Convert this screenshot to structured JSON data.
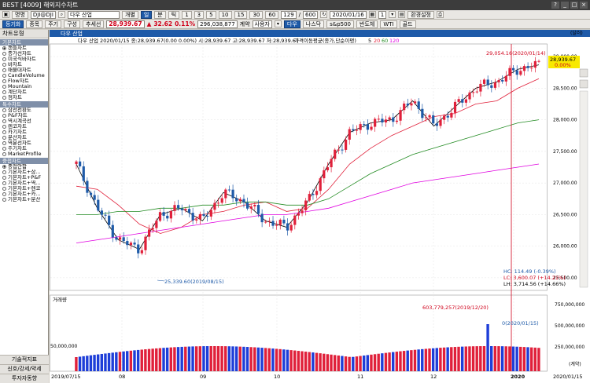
{
  "window": {
    "title": "BEST [4009] 해외지수차트",
    "controls": [
      "?",
      "_",
      "□",
      "×"
    ]
  },
  "toolbar1": {
    "menu": "명명",
    "symbol_code": "DJI@DJI",
    "symbol_name": "다우 산업",
    "period_buttons": [
      "개별",
      "일",
      "분",
      "틱"
    ],
    "scale_buttons": [
      "1",
      "3",
      "5",
      "10",
      "15",
      "30",
      "60"
    ],
    "count": "129",
    "total": "600",
    "date": "2020/01/16",
    "step": "1",
    "settings_label": "환경설정"
  },
  "toolbar2": {
    "tab_active": "등기화",
    "tab_items": [
      "종목",
      "주기",
      "구성",
      "추세선"
    ],
    "price": "28,939.67",
    "change_arrow": "▲",
    "change": "32.62",
    "change_pct": "0.11%",
    "volume": "296,038,877",
    "volume_unit": "계약",
    "user_select": "사용자",
    "index_buttons": [
      "다우",
      "나스닥",
      "s&p500",
      "반도체",
      "WTI",
      "골드"
    ]
  },
  "sidebar": {
    "tab_label": "차트유형",
    "groups": [
      {
        "title": "기본차트",
        "items": [
          {
            "label": "캔들차트",
            "selected": true
          },
          {
            "label": "종가선차트",
            "selected": false
          },
          {
            "label": "미국식바차트",
            "selected": false
          },
          {
            "label": "바차트",
            "selected": false
          },
          {
            "label": "매물대차트",
            "selected": false
          },
          {
            "label": "CandleVolume",
            "selected": false
          },
          {
            "label": "Flow차트",
            "selected": false
          },
          {
            "label": "Mountain",
            "selected": false
          },
          {
            "label": "계단차트",
            "selected": false
          },
          {
            "label": "점차트",
            "selected": false
          }
        ]
      },
      {
        "title": "특수차트",
        "items": [
          {
            "label": "삼선전환도",
            "selected": false
          },
          {
            "label": "P&F차트",
            "selected": false
          },
          {
            "label": "역시계곡선",
            "selected": false
          },
          {
            "label": "렌코차트",
            "selected": false
          },
          {
            "label": "카기차트",
            "selected": false
          },
          {
            "label": "분산차트",
            "selected": false
          },
          {
            "label": "역분선차트",
            "selected": false
          },
          {
            "label": "주기차트",
            "selected": false
          },
          {
            "label": "MarketProfile",
            "selected": false
          }
        ]
      },
      {
        "title": "중첩차트",
        "items": [
          {
            "label": "중첩안함",
            "selected": true
          },
          {
            "label": "기본차트+삼...",
            "selected": false
          },
          {
            "label": "기본차트+P&F",
            "selected": false
          },
          {
            "label": "기본차트+역...",
            "selected": false
          },
          {
            "label": "기본차트+렌코",
            "selected": false
          },
          {
            "label": "기본차트+카...",
            "selected": false
          },
          {
            "label": "기본차트+분산",
            "selected": false
          }
        ]
      }
    ],
    "bottom_buttons": [
      "기술적지표",
      "신호/강세/약세",
      "투자자동향"
    ]
  },
  "chart": {
    "panel_title": "다우 산업",
    "info_line": "다우 산업 2020/01/15 종:28,939.67(0.00 0.00%) 시:28,939.67 고:28,939.67 저:28,939.67",
    "ma_legend_label": "가격이동평균(종가,단순이평)",
    "ma_periods": [
      "5",
      "20",
      "60",
      "120"
    ],
    "ma_colors": [
      "#000000",
      "#e0203a",
      "#228b22",
      "#e000e0"
    ],
    "current_price_label": "28,939.67",
    "current_pct_label": "0.00%",
    "high_annotation": "29,054.16(2020/01/14)",
    "low_annotation": "25,339.60(2019/08/15)",
    "stats": [
      {
        "label": "HC: 114.49 (-0.39%)",
        "color": "#1e5aa8"
      },
      {
        "label": "LC: 3,600.07 (+14.21%)",
        "color": "#d0021b"
      },
      {
        "label": "LH: 3,714.56 (+14.66%)",
        "color": "#000000"
      }
    ],
    "y_unit": "(달러)",
    "volume_panel": {
      "title": "거래량",
      "max_annotation": "603,779,257(2019/12/20)",
      "last_annotation": "0(2020/01/15)",
      "y_ticks": [
        "750,000,000",
        "500,000,000",
        "250,000,000"
      ],
      "left_tick": "50,000,000",
      "y_unit": "(계약)"
    },
    "x_start_label": "2019/07/15",
    "x_end_label": "2020/01/15",
    "month_labels": [
      "08",
      "09",
      "10",
      "11",
      "12",
      "2020"
    ]
  },
  "chart_data": {
    "type": "candlestick",
    "y_ticks": [
      25500,
      26000,
      26500,
      27000,
      27500,
      28000,
      28500,
      29000
    ],
    "ylim": [
      25300,
      29200
    ],
    "x_start": "2019/07/15",
    "x_end": "2020/01/15",
    "month_labels": [
      "08",
      "09",
      "10",
      "11",
      "12",
      "2020"
    ],
    "series": [
      {
        "name": "5",
        "values": [
          27300,
          26600,
          26100,
          25950,
          26500,
          26600,
          26400,
          26850,
          26700,
          26400,
          26300,
          26700,
          27300,
          27800,
          27950,
          28000,
          28300,
          27900,
          28200,
          28500,
          28600,
          28800,
          28870
        ]
      },
      {
        "name": "20",
        "values": [
          26950,
          26900,
          26650,
          26350,
          26200,
          26300,
          26500,
          26550,
          26650,
          26700,
          26550,
          26600,
          26900,
          27300,
          27550,
          27750,
          27900,
          28050,
          28100,
          28250,
          28300,
          28500,
          28650
        ]
      },
      {
        "name": "60",
        "values": [
          26500,
          26500,
          26550,
          26550,
          26600,
          26600,
          26650,
          26650,
          26700,
          26700,
          26650,
          26650,
          26750,
          26950,
          27150,
          27300,
          27450,
          27550,
          27650,
          27750,
          27850,
          27950,
          28000
        ]
      },
      {
        "name": "120",
        "values": [
          26050,
          26100,
          26150,
          26200,
          26250,
          26300,
          26350,
          26400,
          26450,
          26500,
          26500,
          26550,
          26600,
          26700,
          26800,
          26900,
          27000,
          27050,
          27100,
          27150,
          27200,
          27250,
          27300
        ]
      }
    ]
  }
}
